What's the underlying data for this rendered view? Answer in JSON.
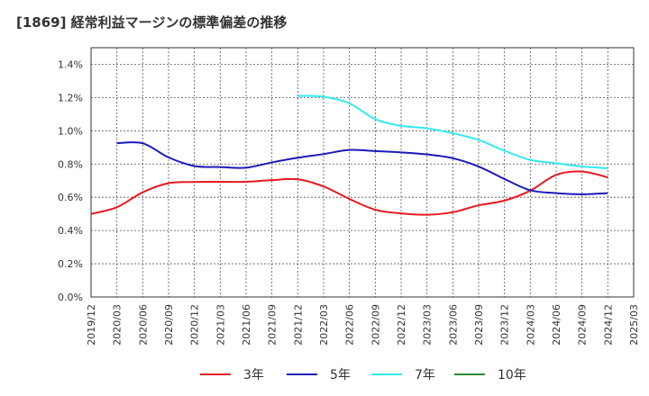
{
  "title": "[1869]  経常利益マージンの標準偏差の推移",
  "chart_data": {
    "type": "line",
    "title": "[1869]  経常利益マージンの標準偏差の推移",
    "xlabel": "",
    "ylabel": "",
    "ylim": [
      0,
      1.5
    ],
    "yticks": [
      "0.0%",
      "0.2%",
      "0.4%",
      "0.6%",
      "0.8%",
      "1.0%",
      "1.2%",
      "1.4%"
    ],
    "ytick_values": [
      0,
      0.2,
      0.4,
      0.6,
      0.8,
      1.0,
      1.2,
      1.4
    ],
    "xticks": [
      "2019/12",
      "2020/03",
      "2020/06",
      "2020/09",
      "2020/12",
      "2021/03",
      "2021/06",
      "2021/09",
      "2021/12",
      "2022/03",
      "2022/06",
      "2022/09",
      "2022/12",
      "2023/03",
      "2023/06",
      "2023/09",
      "2023/12",
      "2024/03",
      "2024/06",
      "2024/09",
      "2024/12",
      "2025/03"
    ],
    "grid": true,
    "legend_position": "bottom",
    "series": [
      {
        "name": "3年",
        "color": "#e8191f",
        "points": [
          [
            "2019/12",
            0.5
          ],
          [
            "2020/03",
            0.54
          ],
          [
            "2020/06",
            0.63
          ],
          [
            "2020/09",
            0.685
          ],
          [
            "2020/12",
            0.692
          ],
          [
            "2021/03",
            0.693
          ],
          [
            "2021/06",
            0.693
          ],
          [
            "2021/09",
            0.703
          ],
          [
            "2021/12",
            0.708
          ],
          [
            "2022/03",
            0.665
          ],
          [
            "2022/06",
            0.59
          ],
          [
            "2022/09",
            0.525
          ],
          [
            "2022/12",
            0.503
          ],
          [
            "2023/03",
            0.495
          ],
          [
            "2023/06",
            0.51
          ],
          [
            "2023/09",
            0.552
          ],
          [
            "2023/12",
            0.58
          ],
          [
            "2024/03",
            0.64
          ],
          [
            "2024/06",
            0.735
          ],
          [
            "2024/09",
            0.755
          ],
          [
            "2024/12",
            0.72
          ]
        ]
      },
      {
        "name": "5年",
        "color": "#1a1ab8",
        "points": [
          [
            "2020/03",
            0.925
          ],
          [
            "2020/06",
            0.925
          ],
          [
            "2020/09",
            0.84
          ],
          [
            "2020/12",
            0.788
          ],
          [
            "2021/03",
            0.782
          ],
          [
            "2021/06",
            0.778
          ],
          [
            "2021/09",
            0.81
          ],
          [
            "2021/12",
            0.838
          ],
          [
            "2022/03",
            0.86
          ],
          [
            "2022/06",
            0.885
          ],
          [
            "2022/09",
            0.878
          ],
          [
            "2022/12",
            0.87
          ],
          [
            "2023/03",
            0.858
          ],
          [
            "2023/06",
            0.835
          ],
          [
            "2023/09",
            0.785
          ],
          [
            "2023/12",
            0.71
          ],
          [
            "2024/03",
            0.642
          ],
          [
            "2024/06",
            0.625
          ],
          [
            "2024/09",
            0.618
          ],
          [
            "2024/12",
            0.625
          ]
        ]
      },
      {
        "name": "7年",
        "color": "#33e8f0",
        "points": [
          [
            "2021/12",
            1.21
          ],
          [
            "2022/03",
            1.205
          ],
          [
            "2022/06",
            1.165
          ],
          [
            "2022/09",
            1.07
          ],
          [
            "2022/12",
            1.03
          ],
          [
            "2023/03",
            1.015
          ],
          [
            "2023/06",
            0.985
          ],
          [
            "2023/09",
            0.945
          ],
          [
            "2023/12",
            0.88
          ],
          [
            "2024/03",
            0.825
          ],
          [
            "2024/06",
            0.805
          ],
          [
            "2024/09",
            0.785
          ],
          [
            "2024/12",
            0.775
          ]
        ]
      },
      {
        "name": "10年",
        "color": "#2e8b2e",
        "points": []
      }
    ]
  }
}
